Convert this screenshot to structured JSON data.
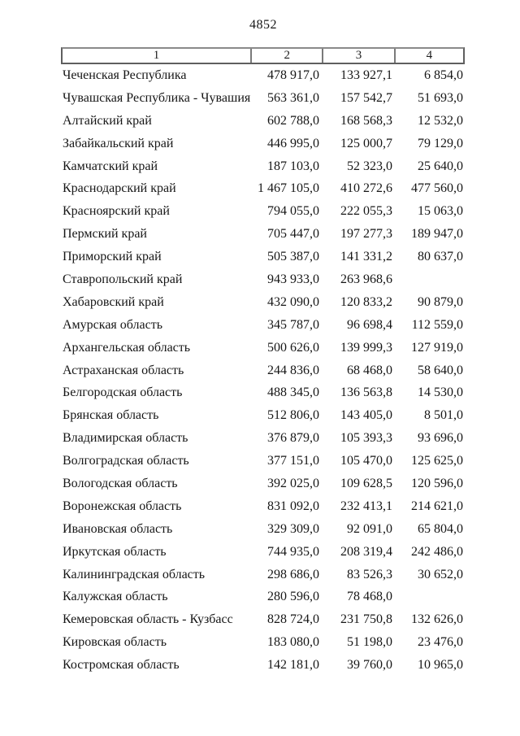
{
  "page": {
    "number": "4852"
  },
  "table": {
    "headers": [
      "1",
      "2",
      "3",
      "4"
    ],
    "rows": [
      {
        "region": "Чеченская Республика",
        "col2": "478 917,0",
        "col3": "133 927,1",
        "col4": "6 854,0"
      },
      {
        "region": "Чувашская Республика - Чувашия",
        "col2": "563 361,0",
        "col3": "157 542,7",
        "col4": "51 693,0"
      },
      {
        "region": "Алтайский край",
        "col2": "602 788,0",
        "col3": "168 568,3",
        "col4": "12 532,0"
      },
      {
        "region": "Забайкальский край",
        "col2": "446 995,0",
        "col3": "125 000,7",
        "col4": "79 129,0"
      },
      {
        "region": "Камчатский край",
        "col2": "187 103,0",
        "col3": "52 323,0",
        "col4": "25 640,0"
      },
      {
        "region": "Краснодарский край",
        "col2": "1 467 105,0",
        "col3": "410 272,6",
        "col4": "477 560,0"
      },
      {
        "region": "Красноярский край",
        "col2": "794 055,0",
        "col3": "222 055,3",
        "col4": "15 063,0"
      },
      {
        "region": "Пермский край",
        "col2": "705 447,0",
        "col3": "197 277,3",
        "col4": "189 947,0"
      },
      {
        "region": "Приморский край",
        "col2": "505 387,0",
        "col3": "141 331,2",
        "col4": "80 637,0"
      },
      {
        "region": "Ставропольский край",
        "col2": "943 933,0",
        "col3": "263 968,6",
        "col4": ""
      },
      {
        "region": "Хабаровский край",
        "col2": "432 090,0",
        "col3": "120 833,2",
        "col4": "90 879,0"
      },
      {
        "region": "Амурская область",
        "col2": "345 787,0",
        "col3": "96 698,4",
        "col4": "112 559,0"
      },
      {
        "region": "Архангельская область",
        "col2": "500 626,0",
        "col3": "139 999,3",
        "col4": "127 919,0"
      },
      {
        "region": "Астраханская область",
        "col2": "244 836,0",
        "col3": "68 468,0",
        "col4": "58 640,0"
      },
      {
        "region": "Белгородская область",
        "col2": "488 345,0",
        "col3": "136 563,8",
        "col4": "14 530,0"
      },
      {
        "region": "Брянская область",
        "col2": "512 806,0",
        "col3": "143 405,0",
        "col4": "8 501,0"
      },
      {
        "region": "Владимирская область",
        "col2": "376 879,0",
        "col3": "105 393,3",
        "col4": "93 696,0"
      },
      {
        "region": "Волгоградская область",
        "col2": "377 151,0",
        "col3": "105 470,0",
        "col4": "125 625,0"
      },
      {
        "region": "Вологодская область",
        "col2": "392 025,0",
        "col3": "109 628,5",
        "col4": "120 596,0"
      },
      {
        "region": "Воронежская область",
        "col2": "831 092,0",
        "col3": "232 413,1",
        "col4": "214 621,0"
      },
      {
        "region": "Ивановская область",
        "col2": "329 309,0",
        "col3": "92 091,0",
        "col4": "65 804,0"
      },
      {
        "region": "Иркутская область",
        "col2": "744 935,0",
        "col3": "208 319,4",
        "col4": "242 486,0"
      },
      {
        "region": "Калининградская область",
        "col2": "298 686,0",
        "col3": "83 526,3",
        "col4": "30 652,0"
      },
      {
        "region": "Калужская область",
        "col2": "280 596,0",
        "col3": "78 468,0",
        "col4": ""
      },
      {
        "region": "Кемеровская область - Кузбасс",
        "col2": "828 724,0",
        "col3": "231 750,8",
        "col4": "132 626,0"
      },
      {
        "region": "Кировская область",
        "col2": "183 080,0",
        "col3": "51 198,0",
        "col4": "23 476,0"
      },
      {
        "region": "Костромская область",
        "col2": "142 181,0",
        "col3": "39 760,0",
        "col4": "10 965,0"
      }
    ]
  }
}
